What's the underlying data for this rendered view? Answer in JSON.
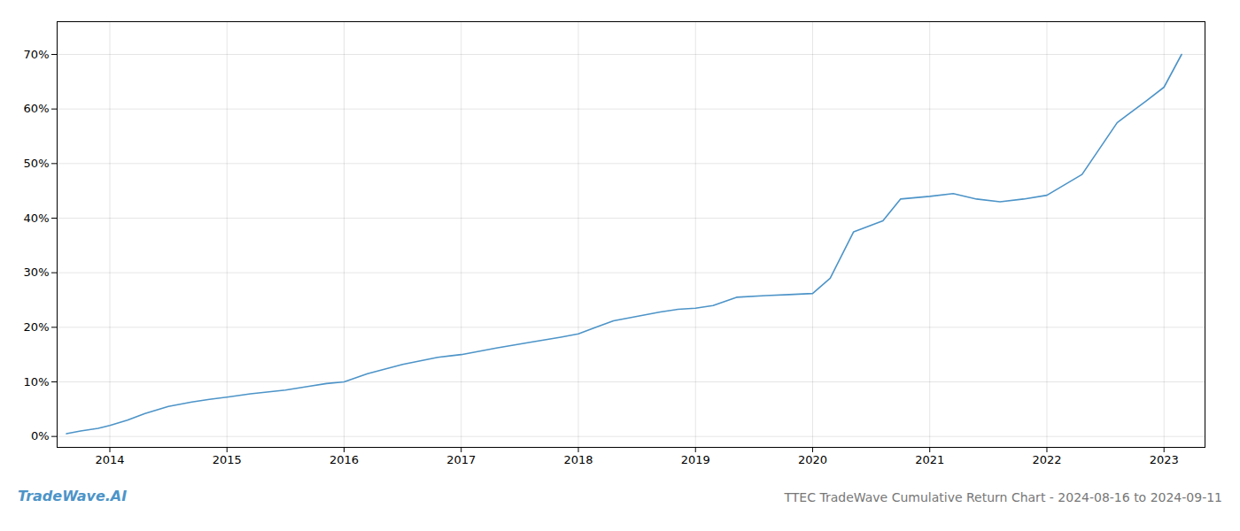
{
  "chart_data": {
    "type": "line",
    "title": "TTEC TradeWave Cumulative Return Chart - 2024-08-16 to 2024-09-11",
    "annotations": [
      "TradeWave.AI"
    ],
    "color": "#4d94c8",
    "x": [
      2013.63,
      2013.75,
      2013.9,
      2014.0,
      2014.15,
      2014.3,
      2014.5,
      2014.7,
      2014.85,
      2015.0,
      2015.2,
      2015.5,
      2015.7,
      2015.85,
      2016.0,
      2016.2,
      2016.5,
      2016.8,
      2017.0,
      2017.3,
      2017.6,
      2017.85,
      2018.0,
      2018.15,
      2018.3,
      2018.5,
      2018.7,
      2018.85,
      2019.0,
      2019.15,
      2019.35,
      2019.6,
      2019.8,
      2020.0,
      2020.15,
      2020.35,
      2020.6,
      2020.75,
      2021.0,
      2021.2,
      2021.4,
      2021.6,
      2021.8,
      2022.0,
      2022.3,
      2022.6,
      2022.85,
      2023.0,
      2023.15
    ],
    "values": [
      0.5,
      1.0,
      1.5,
      2.0,
      3.0,
      4.2,
      5.5,
      6.3,
      6.8,
      7.2,
      7.8,
      8.5,
      9.2,
      9.7,
      10.0,
      11.5,
      13.2,
      14.5,
      15.0,
      16.2,
      17.3,
      18.2,
      18.8,
      20.0,
      21.2,
      22.0,
      22.8,
      23.3,
      23.5,
      24.0,
      25.5,
      25.8,
      26.0,
      26.2,
      29.0,
      37.5,
      39.5,
      43.5,
      44.0,
      44.5,
      43.5,
      43.0,
      43.5,
      44.2,
      48.0,
      57.5,
      61.5,
      64.0,
      70.0
    ],
    "xlim": [
      2013.55,
      2023.35
    ],
    "xticks": [
      2014,
      2015,
      2016,
      2017,
      2018,
      2019,
      2020,
      2021,
      2022,
      2023
    ],
    "ylim": [
      -2,
      76
    ],
    "yticks": [
      {
        "value": 0,
        "label": "0%"
      },
      {
        "value": 10,
        "label": "10%"
      },
      {
        "value": 20,
        "label": "20%"
      },
      {
        "value": 30,
        "label": "30%"
      },
      {
        "value": 40,
        "label": "40%"
      },
      {
        "value": 50,
        "label": "50%"
      },
      {
        "value": 60,
        "label": "60%"
      },
      {
        "value": 70,
        "label": "70%"
      }
    ],
    "grid": true
  }
}
